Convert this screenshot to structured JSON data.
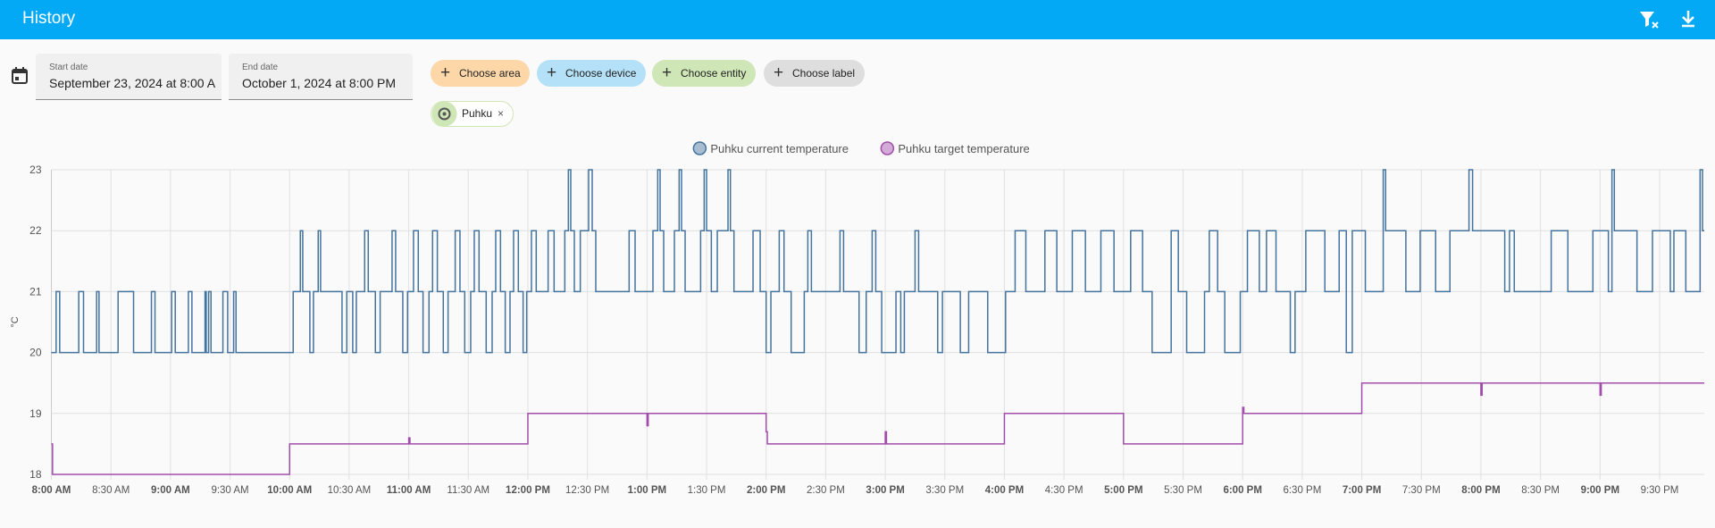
{
  "header": {
    "title": "History"
  },
  "filters": {
    "start_date": {
      "label": "Start date",
      "value": "September 23, 2024 at 8:00 A"
    },
    "end_date": {
      "label": "End date",
      "value": "October 1, 2024 at 8:00 PM"
    },
    "chips": [
      "Choose area",
      "Choose device",
      "Choose entity",
      "Choose label"
    ],
    "selected": [
      "Puhku"
    ]
  },
  "chart_data": {
    "type": "line",
    "step": true,
    "grid": true,
    "legend": "top",
    "y_label": "°C",
    "xlim": [
      8,
      21.875
    ],
    "xticks": [
      {
        "value": 8,
        "label": "8:00 AM"
      },
      {
        "value": 8.5,
        "label": "8:30 AM"
      },
      {
        "value": 9,
        "label": "9:00 AM"
      },
      {
        "value": 9.5,
        "label": "9:30 AM"
      },
      {
        "value": 10,
        "label": "10:00 AM"
      },
      {
        "value": 10.5,
        "label": "10:30 AM"
      },
      {
        "value": 11,
        "label": "11:00 AM"
      },
      {
        "value": 11.5,
        "label": "11:30 AM"
      },
      {
        "value": 12,
        "label": "12:00 PM"
      },
      {
        "value": 12.5,
        "label": "12:30 PM"
      },
      {
        "value": 13,
        "label": "1:00 PM"
      },
      {
        "value": 13.5,
        "label": "1:30 PM"
      },
      {
        "value": 14,
        "label": "2:00 PM"
      },
      {
        "value": 14.5,
        "label": "2:30 PM"
      },
      {
        "value": 15,
        "label": "3:00 PM"
      },
      {
        "value": 15.5,
        "label": "3:30 PM"
      },
      {
        "value": 16,
        "label": "4:00 PM"
      },
      {
        "value": 16.5,
        "label": "4:30 PM"
      },
      {
        "value": 17,
        "label": "5:00 PM"
      },
      {
        "value": 17.5,
        "label": "5:30 PM"
      },
      {
        "value": 18,
        "label": "6:00 PM"
      },
      {
        "value": 18.5,
        "label": "6:30 PM"
      },
      {
        "value": 19,
        "label": "7:00 PM"
      },
      {
        "value": 19.5,
        "label": "7:30 PM"
      },
      {
        "value": 20,
        "label": "8:00 PM"
      },
      {
        "value": 20.5,
        "label": "8:30 PM"
      },
      {
        "value": 21,
        "label": "9:00 PM"
      },
      {
        "value": 21.5,
        "label": "9:30 PM"
      }
    ],
    "ylim": [
      18,
      23
    ],
    "yticks": [
      18,
      19,
      20,
      21,
      22,
      23
    ],
    "series": [
      {
        "name": "Puhku current temperature",
        "color": "#44739e",
        "x": [
          8.0,
          8.04,
          8.07,
          8.23,
          8.27,
          8.38,
          8.4,
          8.56,
          8.69,
          8.84,
          8.87,
          9.01,
          9.04,
          9.15,
          9.18,
          9.29,
          9.3,
          9.32,
          9.34,
          9.44,
          9.48,
          9.53,
          9.55,
          10.03,
          10.09,
          10.11,
          10.17,
          10.2,
          10.24,
          10.26,
          10.44,
          10.48,
          10.53,
          10.56,
          10.63,
          10.66,
          10.72,
          10.76,
          10.86,
          10.89,
          10.95,
          10.99,
          11.04,
          11.08,
          11.12,
          11.17,
          11.2,
          11.24,
          11.29,
          11.33,
          11.39,
          11.43,
          11.47,
          11.52,
          11.55,
          11.59,
          11.65,
          11.7,
          11.73,
          11.77,
          11.81,
          11.85,
          11.88,
          11.92,
          11.96,
          11.99,
          12.03,
          12.07,
          12.17,
          12.22,
          12.31,
          12.34,
          12.36,
          12.39,
          12.44,
          12.51,
          12.54,
          12.57,
          12.85,
          12.9,
          13.05,
          13.09,
          13.11,
          13.14,
          13.23,
          13.27,
          13.29,
          13.32,
          13.45,
          13.48,
          13.5,
          13.54,
          13.59,
          13.68,
          13.7,
          13.73,
          13.89,
          13.95,
          14.0,
          14.04,
          14.11,
          14.15,
          14.21,
          14.32,
          14.35,
          14.38,
          14.62,
          14.65,
          14.78,
          14.84,
          14.89,
          14.92,
          14.97,
          15.09,
          15.13,
          15.16,
          15.25,
          15.28,
          15.44,
          15.48,
          15.63,
          15.7,
          15.86,
          16.01,
          16.09,
          16.18,
          16.34,
          16.44,
          16.57,
          16.68,
          16.81,
          16.92,
          17.06,
          17.16,
          17.24,
          17.4,
          17.46,
          17.53,
          17.68,
          17.72,
          17.79,
          17.85,
          17.98,
          18.04,
          18.14,
          18.2,
          18.28,
          18.4,
          18.44,
          18.53,
          18.69,
          18.81,
          18.87,
          18.92,
          19.03,
          19.18,
          19.2,
          19.37,
          19.49,
          19.62,
          19.74,
          19.9,
          19.93,
          20.2,
          20.24,
          20.28,
          20.59,
          20.73,
          20.94,
          21.07,
          21.1,
          21.12,
          21.31,
          21.44,
          21.59,
          21.62,
          21.72,
          21.84,
          21.86
        ],
        "values": [
          20,
          21,
          20,
          21,
          20,
          21,
          20,
          21,
          20,
          21,
          20,
          21,
          20,
          21,
          20,
          21,
          20,
          21,
          20,
          21,
          20,
          21,
          20,
          21,
          22,
          21,
          20,
          21,
          22,
          21,
          20,
          21,
          20,
          21,
          22,
          21,
          20,
          21,
          22,
          21,
          20,
          21,
          22,
          21,
          20,
          21,
          22,
          21,
          20,
          21,
          22,
          21,
          20,
          21,
          22,
          21,
          20,
          21,
          22,
          21,
          20,
          21,
          22,
          21,
          20,
          21,
          22,
          21,
          22,
          21,
          22,
          23,
          22,
          21,
          22,
          23,
          22,
          21,
          22,
          21,
          22,
          23,
          22,
          21,
          22,
          23,
          22,
          21,
          22,
          23,
          22,
          21,
          22,
          23,
          22,
          21,
          22,
          21,
          20,
          21,
          22,
          21,
          20,
          21,
          22,
          21,
          22,
          21,
          20,
          21,
          22,
          21,
          20,
          21,
          20,
          21,
          22,
          21,
          20,
          21,
          20,
          21,
          20,
          21,
          22,
          21,
          22,
          21,
          22,
          21,
          22,
          21,
          22,
          21,
          20,
          22,
          21,
          20,
          21,
          22,
          21,
          20,
          21,
          22,
          21,
          22,
          21,
          20,
          21,
          22,
          21,
          22,
          20,
          22,
          21,
          23,
          22,
          21,
          22,
          21,
          22,
          23,
          22,
          21,
          22,
          21,
          22,
          21,
          22,
          21,
          23,
          22,
          21,
          22,
          21,
          22,
          21,
          23,
          22
        ]
      },
      {
        "name": "Puhku target temperature",
        "color": "#a24dab",
        "x": [
          8.0,
          8.01,
          10.0,
          11.0,
          11.01,
          12.0,
          13.0,
          13.01,
          14.0,
          14.01,
          15.0,
          15.01,
          16.0,
          17.0,
          18.0,
          18.01,
          19.0,
          20.0,
          20.01,
          21.0,
          21.01
        ],
        "values": [
          18.5,
          18,
          18.5,
          18.6,
          18.5,
          19,
          18.8,
          19,
          18.7,
          18.5,
          18.7,
          18.5,
          19,
          18.5,
          19.1,
          19,
          19.5,
          19.3,
          19.5,
          19.3,
          19.5
        ]
      }
    ]
  }
}
